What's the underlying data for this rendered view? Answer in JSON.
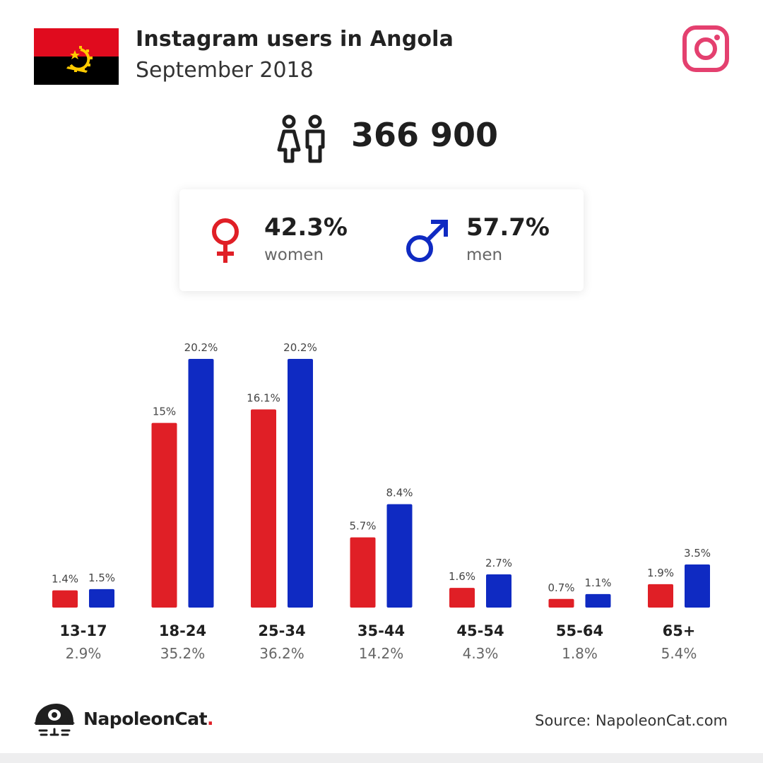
{
  "header": {
    "title": "Instagram users in Angola",
    "subtitle": "September 2018"
  },
  "total": {
    "value": "366 900"
  },
  "gender": {
    "women_pct": "42.3%",
    "women_label": "women",
    "men_pct": "57.7%",
    "men_label": "men"
  },
  "colors": {
    "women": "#e01f26",
    "men": "#0f2ac2",
    "flag_red": "#e00b1e",
    "flag_black": "#000000",
    "emblem_yellow": "#ffcb00",
    "instagram": "#e4406f"
  },
  "icons": {
    "flag": "angola-flag-icon",
    "instagram": "instagram-icon",
    "people": "people-icon",
    "female": "female-symbol-icon",
    "male": "male-symbol-icon",
    "brand": "napoleoncat-logo-icon"
  },
  "chart_data": {
    "type": "bar",
    "categories": [
      "13-17",
      "18-24",
      "25-34",
      "35-44",
      "45-54",
      "55-64",
      "65+"
    ],
    "category_totals": [
      "2.9%",
      "35.2%",
      "36.2%",
      "14.2%",
      "4.3%",
      "1.8%",
      "5.4%"
    ],
    "series": [
      {
        "values": [
          1.4,
          15,
          16.1,
          5.7,
          1.6,
          0.7,
          1.9
        ],
        "labels": [
          "1.4%",
          "15%",
          "16.1%",
          "5.7%",
          "1.6%",
          "0.7%",
          "1.9%"
        ],
        "color": "#e01f26"
      },
      {
        "values": [
          1.5,
          20.2,
          20.2,
          8.4,
          2.7,
          1.1,
          3.5
        ],
        "labels": [
          "1.5%",
          "20.2%",
          "20.2%",
          "8.4%",
          "2.7%",
          "1.1%",
          "3.5%"
        ],
        "color": "#0f2ac2"
      }
    ],
    "title": "",
    "xlabel": "",
    "ylabel": "",
    "ylim": [
      0,
      20.2
    ],
    "grid": false,
    "legend": "none"
  },
  "footer": {
    "brand_name": "NapoleonCat",
    "brand_dot": ".",
    "source": "Source: NapoleonCat.com"
  }
}
